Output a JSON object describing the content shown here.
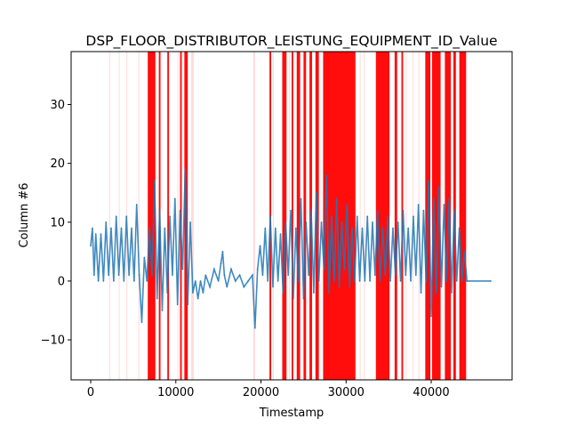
{
  "chart_data": {
    "type": "line",
    "title": "DSP_FLOOR_DISTRIBUTOR_LEISTUNG_EQUIPMENT_ID_Value",
    "xlabel": "Timestamp",
    "ylabel": "Column #6",
    "xlim": [
      -2300,
      49500
    ],
    "ylim": [
      -16.8,
      39
    ],
    "xticks": [
      0,
      10000,
      20000,
      30000,
      40000
    ],
    "yticks": [
      -10,
      0,
      10,
      20,
      30
    ],
    "grid": false,
    "line_color": "#1f77b4",
    "anomaly_color": "#ff0000",
    "series": [
      {
        "values": [
          [
            0,
            6
          ],
          [
            200,
            9
          ],
          [
            400,
            1
          ],
          [
            600,
            8
          ],
          [
            900,
            0
          ],
          [
            1200,
            8
          ],
          [
            1500,
            0
          ],
          [
            1800,
            10
          ],
          [
            2100,
            1
          ],
          [
            2400,
            9
          ],
          [
            2700,
            0
          ],
          [
            3000,
            11
          ],
          [
            3300,
            1
          ],
          [
            3600,
            9
          ],
          [
            3900,
            0
          ],
          [
            4200,
            11
          ],
          [
            4500,
            1
          ],
          [
            4800,
            9
          ],
          [
            5100,
            0
          ],
          [
            5400,
            13
          ],
          [
            5700,
            1
          ],
          [
            6000,
            -7
          ],
          [
            6300,
            4
          ],
          [
            6600,
            0
          ],
          [
            6900,
            9
          ],
          [
            7200,
            1
          ],
          [
            7500,
            17
          ],
          [
            7800,
            -3
          ],
          [
            8100,
            12
          ],
          [
            8400,
            -5
          ],
          [
            8700,
            9
          ],
          [
            9000,
            -2
          ],
          [
            9300,
            11
          ],
          [
            9600,
            1
          ],
          [
            9900,
            14
          ],
          [
            10200,
            -4
          ],
          [
            10500,
            12
          ],
          [
            10800,
            2
          ],
          [
            11100,
            19
          ],
          [
            11400,
            -4
          ],
          [
            11700,
            10
          ],
          [
            12000,
            -2
          ],
          [
            12300,
            0
          ],
          [
            12600,
            -3
          ],
          [
            12900,
            0
          ],
          [
            13200,
            -2
          ],
          [
            13500,
            1
          ],
          [
            14000,
            -1
          ],
          [
            14500,
            2
          ],
          [
            15000,
            0
          ],
          [
            15300,
            3
          ],
          [
            15500,
            5
          ],
          [
            15700,
            1
          ],
          [
            16000,
            -1
          ],
          [
            16500,
            2
          ],
          [
            17000,
            0
          ],
          [
            17500,
            1
          ],
          [
            18000,
            -1
          ],
          [
            18500,
            0
          ],
          [
            19000,
            1
          ],
          [
            19300,
            -8
          ],
          [
            19600,
            2
          ],
          [
            19900,
            6
          ],
          [
            20200,
            1
          ],
          [
            20500,
            9
          ],
          [
            20800,
            0
          ],
          [
            21100,
            11
          ],
          [
            21400,
            -1
          ],
          [
            21700,
            9
          ],
          [
            22000,
            0
          ],
          [
            22300,
            8
          ],
          [
            22600,
            -2
          ],
          [
            22900,
            10
          ],
          [
            23200,
            1
          ],
          [
            23500,
            12
          ],
          [
            23800,
            -3
          ],
          [
            24100,
            9
          ],
          [
            24400,
            0
          ],
          [
            24700,
            14
          ],
          [
            25000,
            -3
          ],
          [
            25300,
            10
          ],
          [
            25600,
            1
          ],
          [
            25900,
            12
          ],
          [
            26200,
            -2
          ],
          [
            26500,
            15
          ],
          [
            26800,
            0
          ],
          [
            27100,
            10
          ],
          [
            27400,
            2
          ],
          [
            27700,
            18
          ],
          [
            28000,
            -2
          ],
          [
            28300,
            11
          ],
          [
            28600,
            0
          ],
          [
            28900,
            14
          ],
          [
            29200,
            -1
          ],
          [
            29500,
            10
          ],
          [
            29800,
            2
          ],
          [
            30100,
            13
          ],
          [
            30400,
            -1
          ],
          [
            30700,
            9
          ],
          [
            31000,
            0
          ],
          [
            31300,
            11
          ],
          [
            31600,
            0
          ],
          [
            31900,
            9
          ],
          [
            32200,
            0
          ],
          [
            32500,
            11
          ],
          [
            32800,
            0
          ],
          [
            33100,
            10
          ],
          [
            33400,
            1
          ],
          [
            33700,
            12
          ],
          [
            34000,
            0
          ],
          [
            34300,
            9
          ],
          [
            34600,
            1
          ],
          [
            34900,
            11
          ],
          [
            35200,
            0
          ],
          [
            35500,
            9
          ],
          [
            35800,
            1
          ],
          [
            36100,
            10
          ],
          [
            36400,
            0
          ],
          [
            36700,
            12
          ],
          [
            37000,
            1
          ],
          [
            37300,
            9
          ],
          [
            37600,
            0
          ],
          [
            37900,
            11
          ],
          [
            38200,
            1
          ],
          [
            38500,
            13
          ],
          [
            38800,
            -2
          ],
          [
            39100,
            12
          ],
          [
            39400,
            0
          ],
          [
            39700,
            17
          ],
          [
            40000,
            -6
          ],
          [
            40300,
            14
          ],
          [
            40600,
            -2
          ],
          [
            40900,
            16
          ],
          [
            41200,
            -1
          ],
          [
            41500,
            13
          ],
          [
            41800,
            0
          ],
          [
            42100,
            14
          ],
          [
            42400,
            -2
          ],
          [
            42700,
            12
          ],
          [
            43000,
            0
          ],
          [
            43300,
            9
          ],
          [
            43600,
            0
          ],
          [
            43900,
            5
          ],
          [
            44200,
            0
          ],
          [
            47000,
            0
          ]
        ]
      }
    ],
    "anomaly_regions_strong": [
      [
        6700,
        7600
      ],
      [
        8000,
        8200
      ],
      [
        9000,
        9200
      ],
      [
        10500,
        10700
      ],
      [
        11000,
        11400
      ],
      [
        21000,
        21200
      ],
      [
        22500,
        23000
      ],
      [
        23600,
        23800
      ],
      [
        24200,
        24600
      ],
      [
        25000,
        25300
      ],
      [
        25700,
        26000
      ],
      [
        26400,
        26800
      ],
      [
        27300,
        31100
      ],
      [
        33500,
        35100
      ],
      [
        35700,
        36000
      ],
      [
        36500,
        36700
      ],
      [
        39300,
        39900
      ],
      [
        40100,
        41100
      ],
      [
        41600,
        42300
      ],
      [
        42600,
        42900
      ],
      [
        43300,
        44100
      ]
    ],
    "anomaly_regions_faint": [
      [
        2200,
        2300
      ],
      [
        3300,
        3400
      ],
      [
        4200,
        4300
      ],
      [
        5600,
        5700
      ],
      [
        10200,
        10300
      ],
      [
        11800,
        12100
      ],
      [
        19100,
        19300
      ],
      [
        21400,
        21500
      ],
      [
        23300,
        23400
      ],
      [
        31600,
        31700
      ],
      [
        32100,
        32200
      ],
      [
        37000,
        37100
      ],
      [
        37800,
        37900
      ],
      [
        38500,
        38600
      ]
    ]
  }
}
